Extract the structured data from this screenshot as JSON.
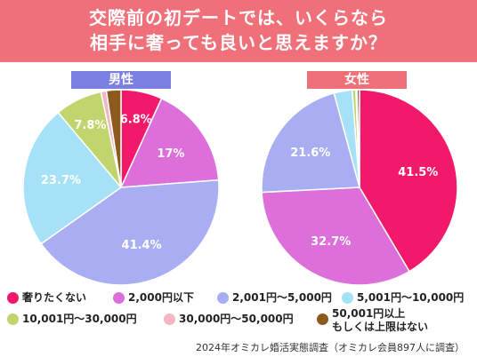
{
  "header": {
    "line1": "交際前の初デートでは、いくらなら",
    "line2": "相手に奢っても良いと思えますか？"
  },
  "labels": {
    "male": "男性",
    "female": "女性"
  },
  "colors": {
    "header": "#f0707a",
    "male_tag": "#7b7fe0",
    "female_tag": "#f0707a",
    "categories": [
      "#f2186a",
      "#dd6fdb",
      "#a9aef2",
      "#a5e2f7",
      "#c1d56e",
      "#f5b6c3",
      "#8b5a1c"
    ]
  },
  "chart_data": [
    {
      "type": "pie",
      "name": "男性",
      "categories": [
        "奢りたくない",
        "2,000円以下",
        "2,001円～5,000円",
        "5,001円～10,000円",
        "10,001円～30,000円",
        "30,000円～50,000円",
        "50,001円以上もしくは上限はない"
      ],
      "values": [
        6.8,
        17,
        41.4,
        23.7,
        7.8,
        0.9,
        2.4
      ],
      "data_labels": [
        "6.8%",
        "17%",
        "41.4%",
        "23.7%",
        "7.8%",
        "",
        ""
      ]
    },
    {
      "type": "pie",
      "name": "女性",
      "categories": [
        "奢りたくない",
        "2,000円以下",
        "2,001円～5,000円",
        "5,001円～10,000円",
        "10,001円～30,000円",
        "30,000円～50,000円",
        "50,001円以上もしくは上限はない"
      ],
      "values": [
        41.5,
        32.7,
        21.6,
        3.0,
        0.6,
        0.2,
        0.4
      ],
      "data_labels": [
        "41.5%",
        "32.7%",
        "21.6%",
        "",
        "",
        "",
        ""
      ]
    }
  ],
  "legend": [
    "奢りたくない",
    "2,000円以下",
    "2,001円～5,000円",
    "5,001円～10,000円",
    "10,001円～30,000円",
    "30,000円～50,000円",
    "50,001円以上",
    "もしくは上限はない"
  ],
  "footer": "2024年オミカレ婚活実態調査（オミカレ会員897人に調査）"
}
